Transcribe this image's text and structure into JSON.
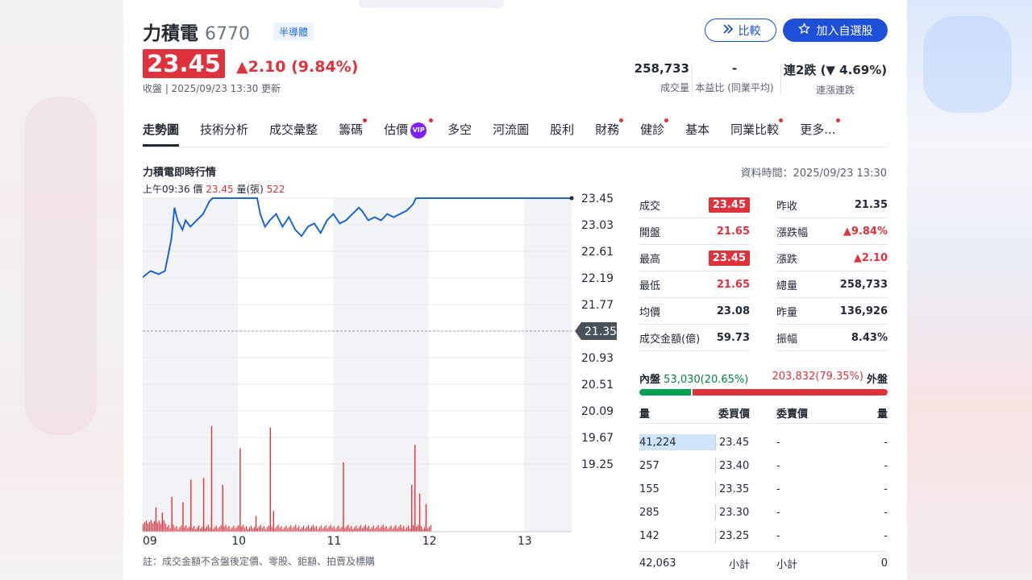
{
  "header": {
    "name": "力積電",
    "code": "6770",
    "industry": "半導體",
    "compare_label": "比較",
    "add_label": "加入自選股"
  },
  "price": {
    "current": "23.45",
    "change": "▲2.10 (9.84%)",
    "updated": "收盤 | 2025/09/23 13:30 更新"
  },
  "summary": {
    "volume": "258,733",
    "volume_label": "成交量",
    "pe": "-",
    "pe_label": "本益比 (同業平均)",
    "streak": "連2跌 (▼ 4.69%)",
    "streak_label": "連漲連跌"
  },
  "tabs": [
    {
      "label": "走勢圖"
    },
    {
      "label": "技術分析"
    },
    {
      "label": "成交彙整"
    },
    {
      "label": "籌碼"
    },
    {
      "label": "估價"
    },
    {
      "label": "多空"
    },
    {
      "label": "河流圖"
    },
    {
      "label": "股利"
    },
    {
      "label": "財務"
    },
    {
      "label": "健診"
    },
    {
      "label": "基本"
    },
    {
      "label": "同業比較"
    },
    {
      "label": "更多..."
    }
  ],
  "vip_label": "VIP",
  "chart_section": {
    "title": "力積電即時行情",
    "data_time": "資料時間：2025/09/23 13:30",
    "hover_time": "上午09:36",
    "hover_price_label": "價",
    "hover_price": "23.45",
    "hover_vol_label": "量(張)",
    "hover_vol": "522",
    "footnote": "註：成交金額不含盤後定價、零股、鉅額、拍賣及標購"
  },
  "chart_data": {
    "type": "line",
    "x_ticks": [
      "09",
      "10",
      "11",
      "12",
      "13"
    ],
    "y_ticks": [
      "23.45",
      "23.03",
      "22.61",
      "22.19",
      "21.77",
      "21.35",
      "20.93",
      "20.51",
      "20.09",
      "19.67",
      "19.25"
    ],
    "ylim": [
      19.25,
      23.45
    ],
    "reference_price": 21.35,
    "colors": {
      "line": "#1d64d8",
      "volume": "#e0323c"
    },
    "price_series": [
      {
        "t": 0,
        "v": 22.2
      },
      {
        "t": 5,
        "v": 22.3
      },
      {
        "t": 10,
        "v": 22.25
      },
      {
        "t": 14,
        "v": 22.3
      },
      {
        "t": 18,
        "v": 22.8
      },
      {
        "t": 20,
        "v": 23.3
      },
      {
        "t": 22,
        "v": 23.1
      },
      {
        "t": 25,
        "v": 22.95
      },
      {
        "t": 27,
        "v": 23.1
      },
      {
        "t": 30,
        "v": 23.0
      },
      {
        "t": 34,
        "v": 23.1
      },
      {
        "t": 38,
        "v": 23.2
      },
      {
        "t": 42,
        "v": 23.4
      },
      {
        "t": 44,
        "v": 23.45
      },
      {
        "t": 72,
        "v": 23.45
      },
      {
        "t": 74,
        "v": 23.2
      },
      {
        "t": 77,
        "v": 23.0
      },
      {
        "t": 80,
        "v": 23.1
      },
      {
        "t": 84,
        "v": 23.2
      },
      {
        "t": 88,
        "v": 23.0
      },
      {
        "t": 92,
        "v": 23.15
      },
      {
        "t": 96,
        "v": 22.95
      },
      {
        "t": 100,
        "v": 22.85
      },
      {
        "t": 104,
        "v": 23.0
      },
      {
        "t": 108,
        "v": 23.05
      },
      {
        "t": 112,
        "v": 22.9
      },
      {
        "t": 116,
        "v": 23.1
      },
      {
        "t": 120,
        "v": 23.2
      },
      {
        "t": 124,
        "v": 23.05
      },
      {
        "t": 128,
        "v": 23.1
      },
      {
        "t": 132,
        "v": 23.2
      },
      {
        "t": 136,
        "v": 23.3
      },
      {
        "t": 138,
        "v": 23.25
      },
      {
        "t": 142,
        "v": 23.1
      },
      {
        "t": 146,
        "v": 23.15
      },
      {
        "t": 150,
        "v": 23.1
      },
      {
        "t": 154,
        "v": 23.2
      },
      {
        "t": 158,
        "v": 23.15
      },
      {
        "t": 162,
        "v": 23.2
      },
      {
        "t": 166,
        "v": 23.25
      },
      {
        "t": 170,
        "v": 23.35
      },
      {
        "t": 172,
        "v": 23.45
      },
      {
        "t": 270,
        "v": 23.45
      }
    ],
    "volume_spikes": [
      {
        "t": 8,
        "v": 1400
      },
      {
        "t": 12,
        "v": 1100
      },
      {
        "t": 18,
        "v": 2000
      },
      {
        "t": 25,
        "v": 1700
      },
      {
        "t": 30,
        "v": 3000
      },
      {
        "t": 38,
        "v": 3100
      },
      {
        "t": 43,
        "v": 6100
      },
      {
        "t": 50,
        "v": 2700
      },
      {
        "t": 61,
        "v": 4800
      },
      {
        "t": 71,
        "v": 900
      },
      {
        "t": 80,
        "v": 6000
      },
      {
        "t": 82,
        "v": 1200
      },
      {
        "t": 126,
        "v": 4000
      },
      {
        "t": 169,
        "v": 2700
      },
      {
        "t": 171,
        "v": 5000
      },
      {
        "t": 174,
        "v": 2200
      },
      {
        "t": 178,
        "v": 1600
      }
    ]
  },
  "quote": {
    "rows": [
      {
        "l1": "成交",
        "v1": "23.45",
        "l2": "昨收",
        "v2": "21.35"
      },
      {
        "l1": "開盤",
        "v1": "21.65",
        "l2": "漲跌幅",
        "v2": "▲9.84%"
      },
      {
        "l1": "最高",
        "v1": "23.45",
        "l2": "漲跌",
        "v2": "▲2.10"
      },
      {
        "l1": "最低",
        "v1": "21.65",
        "l2": "總量",
        "v2": "258,733"
      },
      {
        "l1": "均價",
        "v1": "23.08",
        "l2": "昨量",
        "v2": "136,926"
      },
      {
        "l1": "成交金額(億)",
        "v1": "59.73",
        "l2": "振幅",
        "v2": "8.43%"
      }
    ]
  },
  "inout": {
    "inner_label": "內盤",
    "inner_value": "53,030(20.65%)",
    "outer_value": "203,832(79.35%)",
    "outer_label": "外盤",
    "inner_pct": 20.65,
    "outer_pct": 79.35
  },
  "book": {
    "headers": [
      "量",
      "委買價",
      "委賣價",
      "量"
    ],
    "rows": [
      {
        "bq": "41,224",
        "bp": "23.45",
        "sp": "-",
        "sq": "-"
      },
      {
        "bq": "257",
        "bp": "23.40",
        "sp": "-",
        "sq": "-"
      },
      {
        "bq": "155",
        "bp": "23.35",
        "sp": "-",
        "sq": "-"
      },
      {
        "bq": "285",
        "bp": "23.30",
        "sp": "-",
        "sq": "-"
      },
      {
        "bq": "142",
        "bp": "23.25",
        "sp": "-",
        "sq": "-"
      }
    ],
    "total_buy": "42,063",
    "subtotal_label": "小計",
    "subtotal_label2": "小計",
    "total_sell": "0"
  }
}
